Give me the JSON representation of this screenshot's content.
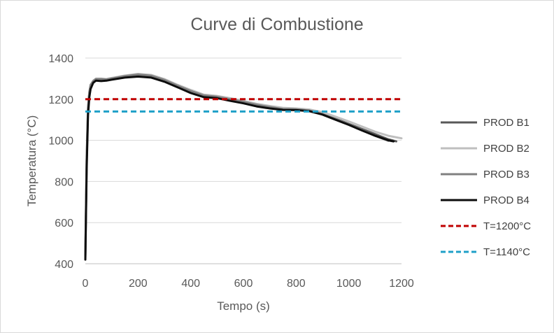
{
  "chart_data": {
    "type": "line",
    "title": "Curve di Combustione",
    "xlabel": "Tempo (s)",
    "ylabel": "Temperatura (°C)",
    "xlim": [
      0,
      1200
    ],
    "ylim": [
      400,
      1400
    ],
    "xticks": [
      0,
      200,
      400,
      600,
      800,
      1000,
      1200
    ],
    "yticks": [
      400,
      600,
      800,
      1000,
      1200,
      1400
    ],
    "grid": "horizontal",
    "legend_position": "right",
    "series": [
      {
        "name": "PROD B1",
        "color": "#595959",
        "style": "solid",
        "x": [
          0,
          5,
          10,
          15,
          20,
          30,
          40,
          60,
          80,
          100,
          150,
          200,
          250,
          300,
          350,
          400,
          450,
          500,
          550,
          600,
          650,
          700,
          750,
          800,
          850,
          900,
          950,
          1000,
          1050,
          1100,
          1150,
          1180
        ],
        "y": [
          430,
          900,
          1150,
          1230,
          1265,
          1285,
          1295,
          1295,
          1295,
          1300,
          1310,
          1318,
          1312,
          1290,
          1262,
          1235,
          1215,
          1210,
          1198,
          1185,
          1170,
          1160,
          1150,
          1150,
          1145,
          1130,
          1105,
          1080,
          1055,
          1030,
          1005,
          995
        ]
      },
      {
        "name": "PROD B2",
        "color": "#bfbfbf",
        "style": "solid",
        "x": [
          0,
          5,
          10,
          15,
          20,
          30,
          40,
          60,
          80,
          100,
          150,
          200,
          250,
          300,
          350,
          400,
          450,
          500,
          550,
          600,
          650,
          700,
          750,
          800,
          850,
          900,
          950,
          1000,
          1050,
          1100,
          1150,
          1200
        ],
        "y": [
          425,
          880,
          1140,
          1225,
          1265,
          1290,
          1300,
          1300,
          1298,
          1303,
          1315,
          1323,
          1318,
          1298,
          1270,
          1245,
          1222,
          1216,
          1205,
          1192,
          1178,
          1167,
          1158,
          1155,
          1150,
          1137,
          1115,
          1092,
          1067,
          1042,
          1022,
          1010
        ]
      },
      {
        "name": "PROD B3",
        "color": "#808080",
        "style": "solid",
        "x": [
          0,
          5,
          10,
          15,
          20,
          30,
          40,
          60,
          80,
          100,
          150,
          200,
          250,
          300,
          350,
          400,
          450,
          500,
          550,
          600,
          650,
          700,
          750,
          800,
          850,
          900,
          950,
          1000,
          1050,
          1100,
          1150
        ],
        "y": [
          440,
          920,
          1160,
          1235,
          1270,
          1288,
          1298,
          1298,
          1296,
          1301,
          1312,
          1320,
          1314,
          1294,
          1266,
          1240,
          1218,
          1212,
          1200,
          1187,
          1173,
          1162,
          1152,
          1151,
          1145,
          1128,
          1103,
          1077,
          1050,
          1022,
          998
        ]
      },
      {
        "name": "PROD B4",
        "color": "#0d0d0d",
        "style": "solid",
        "x": [
          0,
          5,
          10,
          15,
          20,
          30,
          40,
          60,
          80,
          100,
          150,
          200,
          250,
          300,
          350,
          400,
          450,
          500,
          550,
          600,
          650,
          700,
          750,
          800,
          850,
          900,
          950,
          1000,
          1050,
          1100,
          1150,
          1170
        ],
        "y": [
          420,
          860,
          1120,
          1210,
          1250,
          1280,
          1290,
          1288,
          1290,
          1295,
          1305,
          1310,
          1305,
          1285,
          1258,
          1230,
          1210,
          1205,
          1192,
          1180,
          1165,
          1155,
          1148,
          1147,
          1142,
          1125,
          1100,
          1075,
          1048,
          1022,
          1000,
          995
        ]
      },
      {
        "name": "T=1200°C",
        "color": "#c00000",
        "style": "dashed",
        "x": [
          0,
          1200
        ],
        "y": [
          1200,
          1200
        ]
      },
      {
        "name": "T=1140°C",
        "color": "#1fa0c8",
        "style": "dashed",
        "x": [
          0,
          1200
        ],
        "y": [
          1140,
          1140
        ]
      }
    ]
  }
}
